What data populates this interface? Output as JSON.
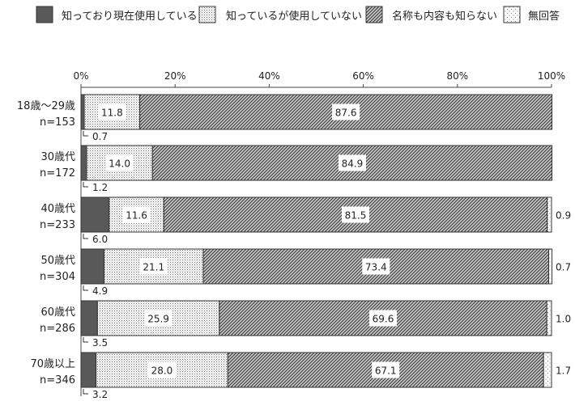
{
  "chart_data": {
    "type": "bar",
    "orientation": "horizontal",
    "stacked": true,
    "xlim": [
      0,
      100
    ],
    "x_ticks": [
      "0%",
      "20%",
      "40%",
      "60%",
      "80%",
      "100%"
    ],
    "legend_position": "top",
    "categories": [
      {
        "line1": "18歳〜29歳",
        "line2": "n=153"
      },
      {
        "line1": "30歳代",
        "line2": "n=172"
      },
      {
        "line1": "40歳代",
        "line2": "n=233"
      },
      {
        "line1": "50歳代",
        "line2": "n=304"
      },
      {
        "line1": "60歳代",
        "line2": "n=286"
      },
      {
        "line1": "70歳以上",
        "line2": "n=346"
      }
    ],
    "series": [
      {
        "name": "知っており現在使用している",
        "pattern": "solid",
        "values": [
          0.7,
          1.2,
          6.0,
          4.9,
          3.5,
          3.2
        ]
      },
      {
        "name": "知っているが使用していない",
        "pattern": "dots",
        "values": [
          11.8,
          14.0,
          11.6,
          21.1,
          25.9,
          28.0
        ]
      },
      {
        "name": "名称も内容も知らない",
        "pattern": "hatch",
        "values": [
          87.6,
          84.9,
          81.5,
          73.4,
          69.6,
          67.1
        ]
      },
      {
        "name": "無回答",
        "pattern": "sparse-dots",
        "values": [
          null,
          null,
          0.9,
          0.7,
          1.0,
          1.7
        ]
      }
    ],
    "value_labels": [
      [
        "0.7",
        "11.8",
        "87.6",
        ""
      ],
      [
        "1.2",
        "14.0",
        "84.9",
        ""
      ],
      [
        "6.0",
        "11.6",
        "81.5",
        "0.9"
      ],
      [
        "4.9",
        "21.1",
        "73.4",
        "0.7"
      ],
      [
        "3.5",
        "25.9",
        "69.6",
        "1.0"
      ],
      [
        "3.2",
        "28.0",
        "67.1",
        "1.7"
      ]
    ],
    "colors": {
      "solid": "#595959",
      "border": "#333333",
      "pattern_line": "#4a4a4a"
    }
  }
}
